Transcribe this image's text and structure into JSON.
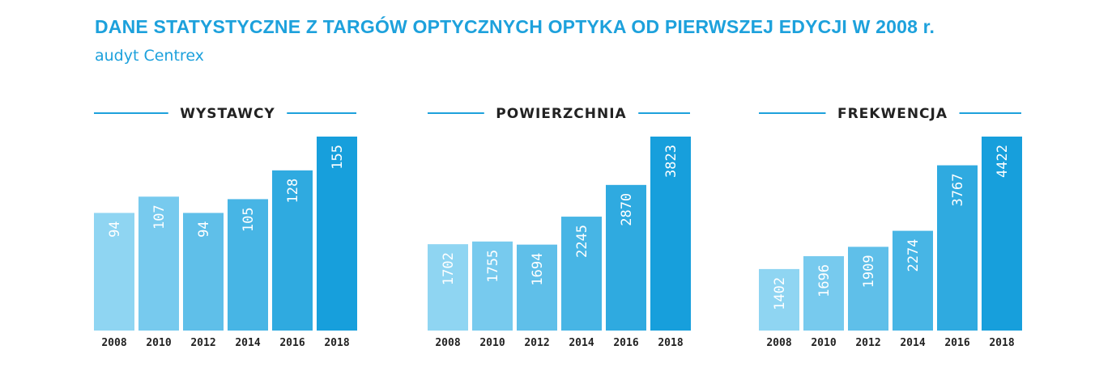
{
  "header": {
    "title": "DANE STATYSTYCZNE Z TARGÓW OPTYCZNYCH OPTYKA OD PIERWSZEJ EDYCJI W 2008 r.",
    "subtitle": "audyt Centrex"
  },
  "colors": {
    "accent": "#1da1dc",
    "bar_light": "#8fd5f2",
    "bar_dark": "#179fdc",
    "text_dark": "#222222",
    "bar_label": "#ffffff"
  },
  "chart_data": [
    {
      "type": "bar",
      "title": "WYSTAWCY",
      "categories": [
        "2008",
        "2010",
        "2012",
        "2014",
        "2016",
        "2018"
      ],
      "values": [
        94,
        107,
        94,
        105,
        128,
        155
      ],
      "ylim": [
        0,
        155
      ],
      "grid": false,
      "xlabel": "",
      "ylabel": ""
    },
    {
      "type": "bar",
      "title": "POWIERZCHNIA",
      "categories": [
        "2008",
        "2010",
        "2012",
        "2014",
        "2016",
        "2018"
      ],
      "values": [
        1702,
        1755,
        1694,
        2245,
        2870,
        3823
      ],
      "ylim": [
        0,
        3823
      ],
      "grid": false,
      "xlabel": "",
      "ylabel": ""
    },
    {
      "type": "bar",
      "title": "FREKWENCJA",
      "categories": [
        "2008",
        "2010",
        "2012",
        "2014",
        "2016",
        "2018"
      ],
      "values": [
        1402,
        1696,
        1909,
        2274,
        3767,
        4422
      ],
      "ylim": [
        0,
        4422
      ],
      "grid": false,
      "xlabel": "",
      "ylabel": ""
    }
  ]
}
